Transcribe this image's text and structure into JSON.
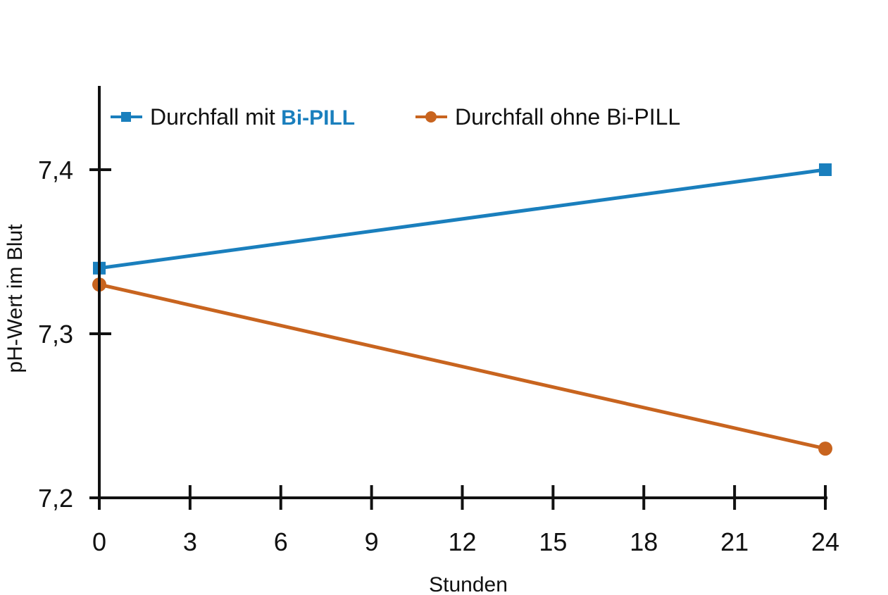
{
  "chart_data": {
    "type": "line",
    "xlabel": "Stunden",
    "ylabel": "pH-Wert im Blut",
    "x": [
      0,
      24
    ],
    "xlim": [
      0,
      24
    ],
    "ylim": [
      7.2,
      7.45
    ],
    "x_ticks": [
      0,
      3,
      6,
      9,
      12,
      15,
      18,
      21,
      24
    ],
    "x_tick_labels": [
      "0",
      "3",
      "6",
      "9",
      "12",
      "15",
      "18",
      "21",
      "24"
    ],
    "y_ticks": [
      7.2,
      7.3,
      7.4
    ],
    "y_tick_labels": [
      "7,2",
      "7,3",
      "7,4"
    ],
    "grid": false,
    "legend_position": "top",
    "series": [
      {
        "name": "Durchfall mit Bi-PILL",
        "legend_prefix": "Durchfall mit",
        "legend_brand": "Bi-PILL",
        "color": "#1a7fbd",
        "marker": "square",
        "values": [
          7.34,
          7.4
        ]
      },
      {
        "name": "Durchfall ohne Bi-PILL",
        "legend_prefix": "Durchfall ohne Bi-PILL",
        "legend_brand": "",
        "color": "#c8641f",
        "marker": "circle",
        "values": [
          7.33,
          7.23
        ]
      }
    ]
  }
}
